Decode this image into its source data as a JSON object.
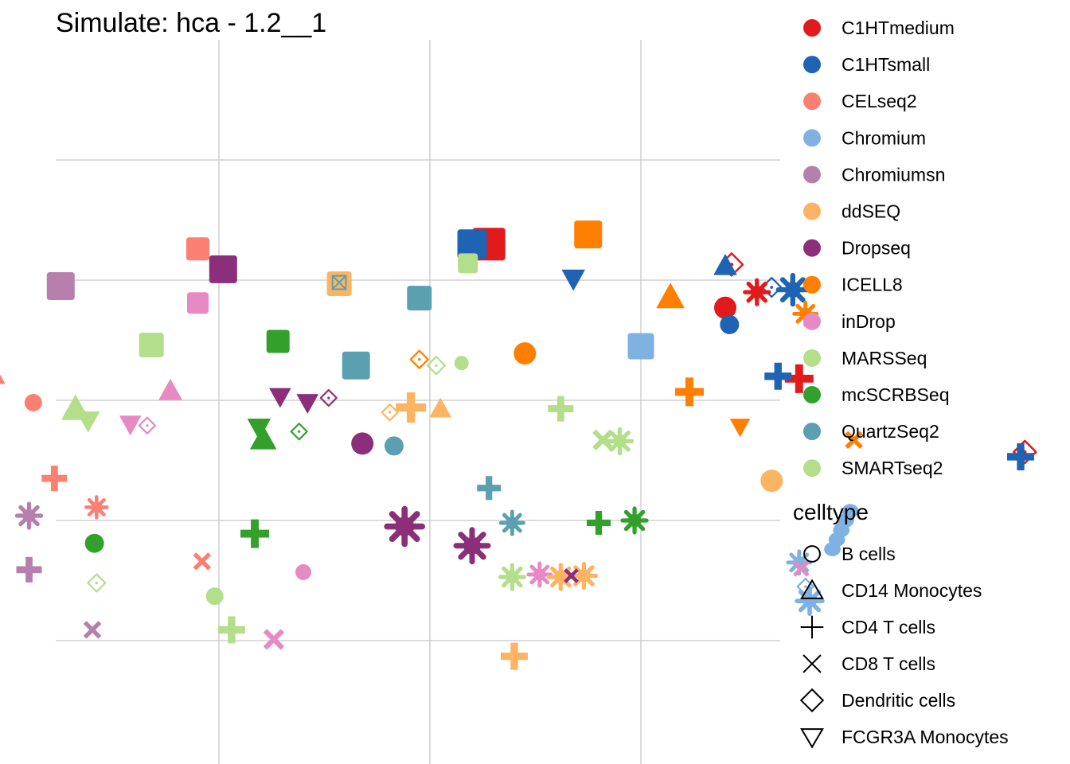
{
  "chart_data": {
    "type": "scatter",
    "title": "Simulate: hca - 1.2__1",
    "xlabel": "",
    "ylabel": "",
    "grid": true,
    "legend_placement": "right",
    "color_legend": [
      {
        "name": "C1HTmedium",
        "color": "#e31a1c"
      },
      {
        "name": "C1HTsmall",
        "color": "#1f63b4"
      },
      {
        "name": "CELseq2",
        "color": "#fb8072"
      },
      {
        "name": "Chromium",
        "color": "#80b1e3"
      },
      {
        "name": "Chromiumsn",
        "color": "#b77fab"
      },
      {
        "name": "ddSEQ",
        "color": "#fdb462"
      },
      {
        "name": "Dropseq",
        "color": "#8b2f7a"
      },
      {
        "name": "ICELL8",
        "color": "#ff7f00"
      },
      {
        "name": "inDrop",
        "color": "#e78ac3"
      },
      {
        "name": "MARSSeq",
        "color": "#b3de8a"
      },
      {
        "name": "mcSCRBSeq",
        "color": "#33a02c"
      },
      {
        "name": "QuartzSeq2",
        "color": "#5aa0b0"
      },
      {
        "name": "SMARTseq2",
        "color": "#b3de8a"
      }
    ],
    "shape_legend_title": "celltype",
    "shape_legend": [
      {
        "name": "B cells",
        "shape": "circle"
      },
      {
        "name": "CD14 Monocytes",
        "shape": "triangle"
      },
      {
        "name": "CD4 T cells",
        "shape": "plus"
      },
      {
        "name": "CD8 T cells",
        "shape": "cross"
      },
      {
        "name": "Dendritic cells",
        "shape": "diamond"
      },
      {
        "name": "FCGR3A Monocytes",
        "shape": "triangle-down"
      }
    ],
    "clusters": [
      {
        "x": 0.28,
        "y": 0.3,
        "color": "#e31a1c",
        "shape": "square",
        "size": 20
      },
      {
        "x": 0.2,
        "y": 0.3,
        "color": "#1f63b4",
        "shape": "square",
        "size": 18
      },
      {
        "x": 0.75,
        "y": 0.38,
        "color": "#ff7f00",
        "shape": "square",
        "size": 17
      },
      {
        "x": -1.1,
        "y": 0.26,
        "color": "#fb8072",
        "shape": "square",
        "size": 14
      },
      {
        "x": -0.98,
        "y": 0.09,
        "color": "#8b2f7a",
        "shape": "square",
        "size": 17
      },
      {
        "x": 0.18,
        "y": 0.14,
        "color": "#b3de8a",
        "shape": "square",
        "size": 12
      },
      {
        "x": 1.43,
        "y": 0.13,
        "color": "#e31a1c",
        "shape": "diamond",
        "size": 14
      },
      {
        "x": 1.4,
        "y": 0.12,
        "color": "#1f63b4",
        "shape": "triangle",
        "size": 14
      },
      {
        "x": 0.68,
        "y": 0.01,
        "color": "#ff7f00",
        "shape": "triangle-down",
        "size": 12
      },
      {
        "x": 0.68,
        "y": 0.01,
        "color": "#1f63b4",
        "shape": "triangle-down",
        "size": 14
      },
      {
        "x": -1.75,
        "y": -0.05,
        "color": "#b77fab",
        "shape": "square",
        "size": 17
      },
      {
        "x": -0.43,
        "y": -0.03,
        "color": "#fdb462",
        "shape": "square",
        "size": 15
      },
      {
        "x": -0.43,
        "y": -0.02,
        "color": "#5aa0b0",
        "shape": "cross-box",
        "size": 12
      },
      {
        "x": 1.14,
        "y": -0.14,
        "color": "#ff7f00",
        "shape": "triangle",
        "size": 17
      },
      {
        "x": -0.05,
        "y": -0.15,
        "color": "#5aa0b0",
        "shape": "square",
        "size": 15
      },
      {
        "x": -1.1,
        "y": -0.19,
        "color": "#e78ac3",
        "shape": "square",
        "size": 13
      },
      {
        "x": 1.62,
        "y": -0.06,
        "color": "#1f63b4",
        "shape": "diamond",
        "size": 12
      },
      {
        "x": 1.55,
        "y": -0.1,
        "color": "#e31a1c",
        "shape": "star",
        "size": 15
      },
      {
        "x": 1.72,
        "y": -0.08,
        "color": "#1f63b4",
        "shape": "star",
        "size": 18
      },
      {
        "x": 1.78,
        "y": -0.28,
        "color": "#ff7f00",
        "shape": "star",
        "size": 14
      },
      {
        "x": 1.4,
        "y": -0.23,
        "color": "#e31a1c",
        "shape": "circle",
        "size": 14
      },
      {
        "x": 1.42,
        "y": -0.37,
        "color": "#1f63b4",
        "shape": "circle",
        "size": 12
      },
      {
        "x": -1.32,
        "y": -0.54,
        "color": "#b3de8a",
        "shape": "square",
        "size": 15
      },
      {
        "x": -0.72,
        "y": -0.51,
        "color": "#33a02c",
        "shape": "square",
        "size": 14
      },
      {
        "x": 1.0,
        "y": -0.55,
        "color": "#80b1e3",
        "shape": "square",
        "size": 16
      },
      {
        "x": 0.45,
        "y": -0.61,
        "color": "#ff7f00",
        "shape": "circle",
        "size": 14
      },
      {
        "x": -0.35,
        "y": -0.71,
        "color": "#5aa0b0",
        "shape": "square",
        "size": 17
      },
      {
        "x": -0.05,
        "y": -0.66,
        "color": "#ff7f00",
        "shape": "diamond",
        "size": 11
      },
      {
        "x": 0.03,
        "y": -0.71,
        "color": "#b3de8a",
        "shape": "diamond",
        "size": 11
      },
      {
        "x": 0.15,
        "y": -0.69,
        "color": "#b3de8a",
        "shape": "circle",
        "size": 9
      },
      {
        "x": -2.08,
        "y": -0.77,
        "color": "#fb8072",
        "shape": "triangle",
        "size": 17
      },
      {
        "x": 1.75,
        "y": -0.82,
        "color": "#e31a1c",
        "shape": "plus",
        "size": 18
      },
      {
        "x": 1.65,
        "y": -0.8,
        "color": "#1f63b4",
        "shape": "plus",
        "size": 17
      },
      {
        "x": -1.23,
        "y": -0.92,
        "color": "#e78ac3",
        "shape": "triangle",
        "size": 14
      },
      {
        "x": -0.71,
        "y": -0.97,
        "color": "#8b2f7a",
        "shape": "triangle-down",
        "size": 13
      },
      {
        "x": -0.58,
        "y": -1.02,
        "color": "#8b2f7a",
        "shape": "triangle-down",
        "size": 13
      },
      {
        "x": -0.48,
        "y": -0.98,
        "color": "#8b2f7a",
        "shape": "diamond",
        "size": 10
      },
      {
        "x": 1.23,
        "y": -0.93,
        "color": "#ff7f00",
        "shape": "plus",
        "size": 18
      },
      {
        "x": -1.88,
        "y": -1.02,
        "color": "#fb8072",
        "shape": "circle",
        "size": 11
      },
      {
        "x": -1.68,
        "y": -1.07,
        "color": "#b3de8a",
        "shape": "triangle",
        "size": 17
      },
      {
        "x": -1.62,
        "y": -1.17,
        "color": "#b3de8a",
        "shape": "triangle-down",
        "size": 14
      },
      {
        "x": -0.09,
        "y": -1.06,
        "color": "#fdb462",
        "shape": "plus",
        "size": 19
      },
      {
        "x": 0.05,
        "y": -1.07,
        "color": "#fdb462",
        "shape": "triangle",
        "size": 13
      },
      {
        "x": 0.62,
        "y": -1.07,
        "color": "#b3de8a",
        "shape": "plus",
        "size": 16
      },
      {
        "x": -0.19,
        "y": -1.1,
        "color": "#fdb462",
        "shape": "diamond",
        "size": 10
      },
      {
        "x": -1.42,
        "y": -1.2,
        "color": "#e78ac3",
        "shape": "triangle-down",
        "size": 13
      },
      {
        "x": -1.34,
        "y": -1.21,
        "color": "#e78ac3",
        "shape": "diamond",
        "size": 10
      },
      {
        "x": -2.42,
        "y": -1.25,
        "color": "#b77fab",
        "shape": "triangle-down",
        "size": 13
      },
      {
        "x": -2.3,
        "y": -1.31,
        "color": "#b77fab",
        "shape": "diamond",
        "size": 10
      },
      {
        "x": -2.17,
        "y": -1.23,
        "color": "#b77fab",
        "shape": "triangle",
        "size": 12
      },
      {
        "x": -0.81,
        "y": -1.23,
        "color": "#33a02c",
        "shape": "triangle-down",
        "size": 14
      },
      {
        "x": -0.79,
        "y": -1.32,
        "color": "#33a02c",
        "shape": "triangle",
        "size": 16
      },
      {
        "x": -0.62,
        "y": -1.26,
        "color": "#33a02c",
        "shape": "diamond",
        "size": 10
      },
      {
        "x": 1.47,
        "y": -1.22,
        "color": "#ff7f00",
        "shape": "triangle-down",
        "size": 12
      },
      {
        "x": 2.01,
        "y": -1.33,
        "color": "#ff7f00",
        "shape": "cross",
        "size": 12
      },
      {
        "x": -0.32,
        "y": -1.36,
        "color": "#8b2f7a",
        "shape": "circle",
        "size": 14
      },
      {
        "x": -0.17,
        "y": -1.38,
        "color": "#5aa0b0",
        "shape": "circle",
        "size": 12
      },
      {
        "x": 0.82,
        "y": -1.33,
        "color": "#b3de8a",
        "shape": "cross",
        "size": 14
      },
      {
        "x": 0.9,
        "y": -1.34,
        "color": "#b3de8a",
        "shape": "star",
        "size": 15
      },
      {
        "x": 2.82,
        "y": -1.43,
        "color": "#e31a1c",
        "shape": "diamond",
        "size": 14
      },
      {
        "x": 2.8,
        "y": -1.47,
        "color": "#1f63b4",
        "shape": "plus",
        "size": 17
      },
      {
        "x": -1.78,
        "y": -1.65,
        "color": "#fb8072",
        "shape": "plus",
        "size": 16
      },
      {
        "x": 0.28,
        "y": -1.73,
        "color": "#5aa0b0",
        "shape": "plus",
        "size": 15
      },
      {
        "x": 1.62,
        "y": -1.67,
        "color": "#fdb462",
        "shape": "circle",
        "size": 14
      },
      {
        "x": -2.42,
        "y": -1.84,
        "color": "#b77fab",
        "shape": "circle",
        "size": 12
      },
      {
        "x": -1.9,
        "y": -1.96,
        "color": "#b77fab",
        "shape": "star",
        "size": 15
      },
      {
        "x": -1.58,
        "y": -1.89,
        "color": "#fb8072",
        "shape": "star",
        "size": 13
      },
      {
        "x": -0.83,
        "y": -2.11,
        "color": "#33a02c",
        "shape": "plus",
        "size": 18
      },
      {
        "x": -0.12,
        "y": -2.05,
        "color": "#8b2f7a",
        "shape": "star",
        "size": 22
      },
      {
        "x": 0.2,
        "y": -2.21,
        "color": "#8b2f7a",
        "shape": "star",
        "size": 20
      },
      {
        "x": 0.39,
        "y": -2.02,
        "color": "#5aa0b0",
        "shape": "star",
        "size": 14
      },
      {
        "x": 0.8,
        "y": -2.02,
        "color": "#33a02c",
        "shape": "plus",
        "size": 15
      },
      {
        "x": 0.97,
        "y": -2.0,
        "color": "#33a02c",
        "shape": "star",
        "size": 15
      },
      {
        "x": 1.95,
        "y": -2.08,
        "color": "#80b1e3",
        "shape": "cluster-vertical",
        "size": 16
      },
      {
        "x": -1.59,
        "y": -2.19,
        "color": "#33a02c",
        "shape": "circle",
        "size": 12
      },
      {
        "x": -1.08,
        "y": -2.34,
        "color": "#fb8072",
        "shape": "cross",
        "size": 12
      },
      {
        "x": -1.9,
        "y": -2.41,
        "color": "#b77fab",
        "shape": "plus",
        "size": 16
      },
      {
        "x": -0.6,
        "y": -2.43,
        "color": "#e78ac3",
        "shape": "circle",
        "size": 10
      },
      {
        "x": 0.39,
        "y": -2.47,
        "color": "#b3de8a",
        "shape": "star",
        "size": 15
      },
      {
        "x": 0.52,
        "y": -2.45,
        "color": "#e78ac3",
        "shape": "star",
        "size": 14
      },
      {
        "x": 0.62,
        "y": -2.47,
        "color": "#fdb462",
        "shape": "star",
        "size": 15
      },
      {
        "x": 0.73,
        "y": -2.46,
        "color": "#fdb462",
        "shape": "star",
        "size": 15
      },
      {
        "x": 0.67,
        "y": -2.46,
        "color": "#8b2f7a",
        "shape": "cross",
        "size": 10
      },
      {
        "x": 1.75,
        "y": -2.35,
        "color": "#80b1e3",
        "shape": "star",
        "size": 14
      },
      {
        "x": 1.76,
        "y": -2.4,
        "color": "#e78ac3",
        "shape": "cross",
        "size": 11
      },
      {
        "x": 1.78,
        "y": -2.55,
        "color": "#80b1e3",
        "shape": "diamond",
        "size": 10
      },
      {
        "x": 1.8,
        "y": -2.67,
        "color": "#80b1e3",
        "shape": "star",
        "size": 16
      },
      {
        "x": -1.58,
        "y": -2.52,
        "color": "#b3de8a",
        "shape": "diamond",
        "size": 11
      },
      {
        "x": -1.02,
        "y": -2.63,
        "color": "#b3de8a",
        "shape": "circle",
        "size": 11
      },
      {
        "x": -1.6,
        "y": -2.91,
        "color": "#b77fab",
        "shape": "cross",
        "size": 12
      },
      {
        "x": -0.94,
        "y": -2.91,
        "color": "#b3de8a",
        "shape": "plus",
        "size": 17
      },
      {
        "x": -0.74,
        "y": -2.99,
        "color": "#e78ac3",
        "shape": "cross",
        "size": 14
      },
      {
        "x": 0.4,
        "y": -3.13,
        "color": "#fdb462",
        "shape": "plus",
        "size": 17
      }
    ]
  }
}
